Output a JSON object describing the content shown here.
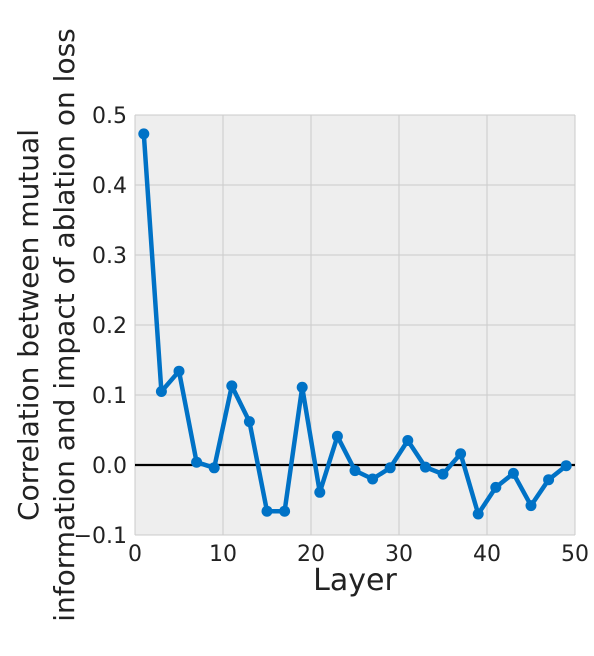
{
  "chart_data": {
    "type": "line",
    "title": "",
    "xlabel": "Layer",
    "ylabel_lines": [
      "Correlation between mutual",
      "information and impact of ablation on loss"
    ],
    "xlim": [
      0,
      50
    ],
    "ylim": [
      -0.1,
      0.5
    ],
    "xticks": [
      0,
      10,
      20,
      30,
      40,
      50
    ],
    "yticks": [
      -0.1,
      0.0,
      0.1,
      0.2,
      0.3,
      0.4,
      0.5
    ],
    "xtick_labels": [
      "0",
      "10",
      "20",
      "30",
      "40",
      "50"
    ],
    "ytick_labels": [
      "−0.1",
      "0.0",
      "0.1",
      "0.2",
      "0.3",
      "0.4",
      "0.5"
    ],
    "grid": true,
    "reference_line_y": 0,
    "series": [
      {
        "color": "#0072c6",
        "x": [
          1,
          3,
          5,
          7,
          9,
          11,
          13,
          15,
          17,
          19,
          21,
          23,
          25,
          27,
          29,
          31,
          33,
          35,
          37,
          39,
          41,
          43,
          45,
          47,
          49
        ],
        "y": [
          0.473,
          0.105,
          0.134,
          0.004,
          -0.004,
          0.113,
          0.062,
          -0.066,
          -0.066,
          0.111,
          -0.039,
          0.041,
          -0.008,
          -0.02,
          -0.004,
          0.035,
          -0.003,
          -0.013,
          0.016,
          -0.07,
          -0.032,
          -0.012,
          -0.058,
          -0.021,
          -0.001
        ]
      }
    ],
    "colors": {
      "plot_background": "#eeeeee",
      "grid": "#cbcbcb",
      "reference_line": "#000000",
      "text": "#222222"
    }
  }
}
